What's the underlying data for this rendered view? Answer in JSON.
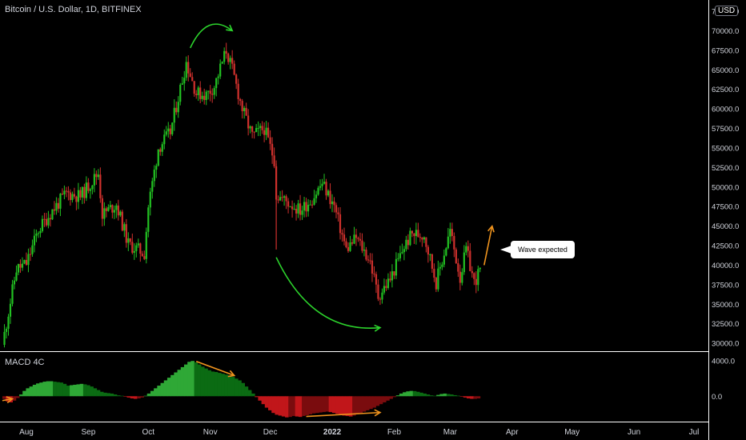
{
  "header": {
    "symbol": "Bitcoin / U.S. Dollar, 1D, BITFINEX"
  },
  "currency_badge": "USD",
  "callout": {
    "text": "Wave expected"
  },
  "macd_panel": {
    "title": "MACD 4C"
  },
  "colors": {
    "up": "#26a69a",
    "candle_up": "#22c122",
    "candle_down": "#d0312d",
    "macd_green_light": "#2fa836",
    "macd_green_dark": "#0b6b13",
    "macd_red_light": "#c1161a",
    "macd_red_dark": "#7a0c0e",
    "arrow_green": "#2cd32c",
    "arrow_orange": "#f0941e",
    "axis_text": "#d1d4dc",
    "separator": "#ffffff"
  },
  "chart_data": [
    {
      "type": "candlestick",
      "title": "Bitcoin / U.S. Dollar, 1D, BITFINEX",
      "ylim": [
        29500,
        72500
      ],
      "y_ticks": [
        "72500.0",
        "70000.0",
        "67500.0",
        "65000.0",
        "62500.0",
        "60000.0",
        "57500.0",
        "55000.0",
        "52500.0",
        "50000.0",
        "47500.0",
        "45000.0",
        "42500.0",
        "40000.0",
        "37500.0",
        "35000.0",
        "32500.0",
        "30000.0"
      ],
      "x_ticks": [
        "Aug",
        "Sep",
        "Oct",
        "Nov",
        "Dec",
        "2022",
        "Feb",
        "Mar",
        "Apr",
        "May",
        "Jun",
        "Jul"
      ],
      "close_path": [
        [
          "2021-07-20",
          29800
        ],
        [
          "2021-07-27",
          39500
        ],
        [
          "2021-08-01",
          40200
        ],
        [
          "2021-08-07",
          44500
        ],
        [
          "2021-08-14",
          47000
        ],
        [
          "2021-08-21",
          49200
        ],
        [
          "2021-08-28",
          48800
        ],
        [
          "2021-09-06",
          51800
        ],
        [
          "2021-09-08",
          46500
        ],
        [
          "2021-09-15",
          47800
        ],
        [
          "2021-09-21",
          42700
        ],
        [
          "2021-09-29",
          41500
        ],
        [
          "2021-10-01",
          47500
        ],
        [
          "2021-10-06",
          55000
        ],
        [
          "2021-10-12",
          57000
        ],
        [
          "2021-10-16",
          61500
        ],
        [
          "2021-10-20",
          66000
        ],
        [
          "2021-10-25",
          62000
        ],
        [
          "2021-10-30",
          61800
        ],
        [
          "2021-11-03",
          62900
        ],
        [
          "2021-11-09",
          67500
        ],
        [
          "2021-11-12",
          65000
        ],
        [
          "2021-11-17",
          60000
        ],
        [
          "2021-11-22",
          56500
        ],
        [
          "2021-11-28",
          57500
        ],
        [
          "2021-12-03",
          53500
        ],
        [
          "2021-12-04",
          49000
        ],
        [
          "2021-12-10",
          48000
        ],
        [
          "2021-12-16",
          47000
        ],
        [
          "2021-12-22",
          48500
        ],
        [
          "2021-12-27",
          50500
        ],
        [
          "2022-01-02",
          47500
        ],
        [
          "2022-01-08",
          42000
        ],
        [
          "2022-01-13",
          43500
        ],
        [
          "2022-01-20",
          40500
        ],
        [
          "2022-01-24",
          36000
        ],
        [
          "2022-01-30",
          38200
        ],
        [
          "2022-02-06",
          42400
        ],
        [
          "2022-02-10",
          44000
        ],
        [
          "2022-02-16",
          43900
        ],
        [
          "2022-02-22",
          37800
        ],
        [
          "2022-03-01",
          44400
        ],
        [
          "2022-03-06",
          38400
        ],
        [
          "2022-03-09",
          42000
        ],
        [
          "2022-03-13",
          37800
        ],
        [
          "2022-03-16",
          39300
        ]
      ],
      "annotations": [
        {
          "type": "curved-arrow",
          "color": "green",
          "from": [
            "2021-10-22",
            67800
          ],
          "to": [
            "2021-11-12",
            70000
          ]
        },
        {
          "type": "curved-arrow",
          "color": "green",
          "from": [
            "2021-12-04",
            41000
          ],
          "to": [
            "2022-01-25",
            32000
          ]
        },
        {
          "type": "arrow",
          "color": "orange",
          "from": [
            "2022-03-18",
            40000
          ],
          "to": [
            "2022-03-22",
            45000
          ]
        }
      ]
    },
    {
      "type": "bar",
      "title": "MACD 4C",
      "y_ticks": [
        "4000.0",
        "0.0"
      ],
      "ylim": [
        -2700,
        4200
      ],
      "values": [
        -300,
        -600,
        -700,
        -500,
        -200,
        200,
        600,
        900,
        1100,
        1300,
        1450,
        1550,
        1650,
        1700,
        1700,
        1650,
        1600,
        1550,
        1400,
        1200,
        1250,
        1300,
        1350,
        1400,
        1350,
        1250,
        1100,
        900,
        700,
        500,
        400,
        350,
        300,
        200,
        100,
        50,
        -50,
        -150,
        -250,
        -300,
        -250,
        -150,
        50,
        300,
        600,
        900,
        1200,
        1500,
        1800,
        2100,
        2400,
        2700,
        3000,
        3300,
        3600,
        3900,
        4000,
        3850,
        3600,
        3350,
        3150,
        2950,
        2800,
        2750,
        2650,
        2550,
        2450,
        2350,
        2200,
        2000,
        1800,
        1500,
        1100,
        700,
        300,
        -100,
        -500,
        -900,
        -1300,
        -1600,
        -1900,
        -2100,
        -2200,
        -2300,
        -2400,
        -2350,
        -2250,
        -2300,
        -2350,
        -2250,
        -2150,
        -2050,
        -1950,
        -1900,
        -1850,
        -1800,
        -1750,
        -1800,
        -1900,
        -2000,
        -2100,
        -2200,
        -2250,
        -2300,
        -2200,
        -2050,
        -1900,
        -1750,
        -1600,
        -1450,
        -1300,
        -1100,
        -900,
        -700,
        -500,
        -300,
        -100,
        100,
        300,
        450,
        550,
        600,
        580,
        500,
        400,
        300,
        200,
        100,
        50,
        150,
        250,
        300,
        250,
        200,
        120,
        60,
        -50,
        -150,
        -250,
        -300,
        -300,
        -250
      ],
      "annotations": [
        {
          "type": "arrow",
          "color": "orange",
          "from": [
            "2021-10-25",
            3950
          ],
          "to": [
            "2021-11-13",
            2350
          ]
        },
        {
          "type": "arrow",
          "color": "orange",
          "from": [
            "2021-12-19",
            -2300
          ],
          "to": [
            "2022-01-25",
            -1850
          ]
        },
        {
          "type": "arrow",
          "color": "orange",
          "from": [
            "2021-07-20",
            -500
          ],
          "to": [
            "2021-07-25",
            -300
          ]
        }
      ]
    }
  ]
}
